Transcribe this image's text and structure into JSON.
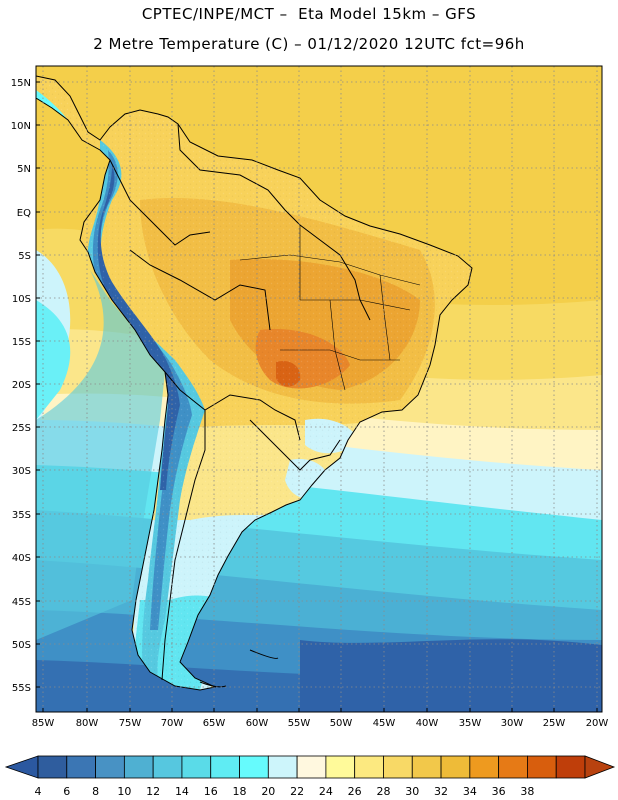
{
  "header": {
    "line1": "CPTEC/INPE/MCT –  Eta Model 15km – GFS",
    "line2": "2 Metre Temperature (C) – 01/12/2020 12UTC fct=96h"
  },
  "map": {
    "region": "South America",
    "lon_range": [
      -86,
      -20
    ],
    "lat_range": [
      -59,
      17
    ],
    "lat_ticks": [
      "15N",
      "10N",
      "5N",
      "EQ",
      "5S",
      "10S",
      "15S",
      "20S",
      "25S",
      "30S",
      "35S",
      "40S",
      "45S",
      "50S",
      "55S"
    ],
    "lon_ticks": [
      "85W",
      "80W",
      "75W",
      "70W",
      "65W",
      "60W",
      "55W",
      "50W",
      "45W",
      "40W",
      "35W",
      "30W",
      "25W",
      "20W"
    ]
  },
  "colorbar": {
    "values": [
      "4",
      "6",
      "8",
      "10",
      "12",
      "14",
      "16",
      "18",
      "20",
      "22",
      "24",
      "26",
      "28",
      "30",
      "32",
      "34",
      "36",
      "38"
    ],
    "colors": [
      "#2f5d9e",
      "#3b76b4",
      "#4892c4",
      "#4fb0d2",
      "#56c7df",
      "#5adbe8",
      "#5fecf3",
      "#66fbfd",
      "#cdf5fb",
      "#fff8df",
      "#fffa9a",
      "#fce980",
      "#f8d966",
      "#f2c84a",
      "#eebb38",
      "#ee9a1f",
      "#e67a16",
      "#d85e0d",
      "#bf3e0a"
    ],
    "low_color": "#2b58a0",
    "high_color": "#b8420f"
  },
  "colors": {
    "ocean_north": "#f6d24c",
    "ocean_mid": "#fbe88a",
    "ocean_cool": "#5ad9ea",
    "ocean_cold": "#3d8dc6",
    "ocean_coldest": "#2e62a6",
    "land_hot": "#eea235",
    "land_warm": "#f6c752",
    "andes_cold": "#3f7fc0",
    "border": "#000000"
  }
}
